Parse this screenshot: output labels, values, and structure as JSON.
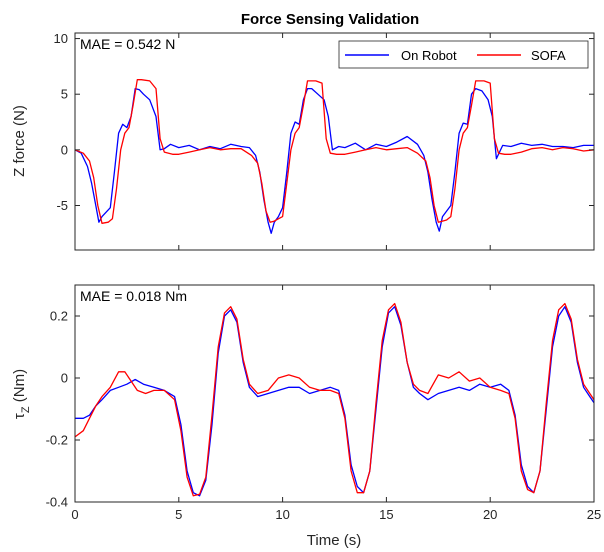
{
  "title": "Force Sensing Validation",
  "chart_data": [
    {
      "type": "line",
      "ylabel": "Z force (N)",
      "xlabel": "",
      "xlim": [
        0,
        25
      ],
      "ylim": [
        -9,
        10.5
      ],
      "xticks": [
        0,
        5,
        10,
        15,
        20,
        25
      ],
      "yticks": [
        -5,
        0,
        5,
        10
      ],
      "xticklabels_shown": false,
      "grid": false,
      "legend": "top-right",
      "annotation": "MAE = 0.542 N",
      "series": [
        {
          "name": "On Robot",
          "color": "#0000ff",
          "x": [
            0,
            0.3,
            0.6,
            0.8,
            1.0,
            1.15,
            1.3,
            1.5,
            1.7,
            1.9,
            2.1,
            2.3,
            2.5,
            2.7,
            2.9,
            3.1,
            3.3,
            3.6,
            3.9,
            4.1,
            4.3,
            4.6,
            5.0,
            5.5,
            6.0,
            6.5,
            7.0,
            7.5,
            8.0,
            8.4,
            8.7,
            8.9,
            9.1,
            9.3,
            9.45,
            9.6,
            9.8,
            10.0,
            10.2,
            10.4,
            10.6,
            10.8,
            11.0,
            11.2,
            11.4,
            11.7,
            12.0,
            12.2,
            12.4,
            12.7,
            13.0,
            13.5,
            14.0,
            14.5,
            15.0,
            15.5,
            16.0,
            16.5,
            16.8,
            17.0,
            17.2,
            17.4,
            17.55,
            17.7,
            17.9,
            18.1,
            18.3,
            18.5,
            18.7,
            18.9,
            19.1,
            19.3,
            19.6,
            19.9,
            20.1,
            20.3,
            20.6,
            21.0,
            21.5,
            22.0,
            22.5,
            23.0,
            23.5,
            24.0,
            24.5,
            25.0
          ],
          "y": [
            0,
            -0.3,
            -1.5,
            -3.0,
            -5.0,
            -6.5,
            -6.0,
            -5.6,
            -5.2,
            -2.0,
            1.5,
            2.3,
            2.0,
            3.0,
            5.5,
            5.4,
            5.0,
            4.5,
            3.0,
            0,
            0.1,
            0.5,
            0.2,
            0.4,
            0,
            0.3,
            0.1,
            0.5,
            0.3,
            0.2,
            -0.5,
            -2.0,
            -4.5,
            -6.5,
            -7.5,
            -6.5,
            -6.0,
            -5.2,
            -2.0,
            1.5,
            2.5,
            2.3,
            4.5,
            5.5,
            5.5,
            5.0,
            4.5,
            3.0,
            0,
            0.3,
            0.2,
            0.6,
            0,
            0.5,
            0.3,
            0.7,
            1.2,
            0.5,
            -0.5,
            -2.0,
            -4.5,
            -6.5,
            -7.3,
            -6.0,
            -5.5,
            -5.0,
            -2.0,
            1.5,
            2.4,
            2.3,
            5.0,
            5.5,
            5.3,
            4.5,
            3.0,
            -0.8,
            0.4,
            0.3,
            0.6,
            0.4,
            0.5,
            0.3,
            0.3,
            0.2,
            0.4,
            0.4
          ]
        },
        {
          "name": "SOFA",
          "color": "#ff0000",
          "x": [
            0,
            0.4,
            0.7,
            0.9,
            1.1,
            1.3,
            1.6,
            1.8,
            2.0,
            2.2,
            2.4,
            2.6,
            2.8,
            3.0,
            3.2,
            3.6,
            3.9,
            4.1,
            4.3,
            4.7,
            5.0,
            5.5,
            6.0,
            6.5,
            7.0,
            7.5,
            8.0,
            8.5,
            8.8,
            9.0,
            9.2,
            9.4,
            9.6,
            9.8,
            10.0,
            10.2,
            10.4,
            10.6,
            10.8,
            11.0,
            11.2,
            11.6,
            11.9,
            12.1,
            12.3,
            12.6,
            13.0,
            13.5,
            14.0,
            14.5,
            15.0,
            15.5,
            16.0,
            16.5,
            16.9,
            17.1,
            17.3,
            17.5,
            17.7,
            17.9,
            18.1,
            18.3,
            18.5,
            18.7,
            18.9,
            19.1,
            19.3,
            19.7,
            20.0,
            20.2,
            20.4,
            20.7,
            21.0,
            21.5,
            22.0,
            22.5,
            23.0,
            23.5,
            24.0,
            24.5,
            25.0
          ],
          "y": [
            0,
            -0.3,
            -1.0,
            -2.5,
            -5.0,
            -6.6,
            -6.5,
            -6.2,
            -3.5,
            0,
            1.5,
            2.0,
            4.0,
            6.3,
            6.3,
            6.2,
            5.5,
            1.0,
            -0.2,
            -0.4,
            -0.4,
            -0.2,
            0,
            0.2,
            0,
            0.1,
            0.1,
            -0.5,
            -1.2,
            -3.0,
            -5.5,
            -6.5,
            -6.4,
            -6.2,
            -6.0,
            -3.0,
            0,
            1.5,
            2.0,
            4.0,
            6.2,
            6.2,
            6.0,
            1.0,
            -0.3,
            -0.4,
            -0.4,
            -0.2,
            0,
            0.2,
            0,
            0.1,
            0.2,
            -0.3,
            -1.0,
            -2.5,
            -5.0,
            -6.5,
            -6.4,
            -6.3,
            -6.0,
            -3.5,
            0,
            1.5,
            2.0,
            4.0,
            6.2,
            6.2,
            6.0,
            1.0,
            -0.3,
            -0.4,
            -0.4,
            -0.2,
            0.1,
            0.2,
            0,
            0.2,
            0.1,
            -0.1,
            0
          ]
        }
      ]
    },
    {
      "type": "line",
      "ylabel": "τ",
      "ylabel_sub": "Z",
      "ylabel_unit": " (Nm)",
      "xlabel": "Time (s)",
      "xlim": [
        0,
        25
      ],
      "ylim": [
        -0.4,
        0.3
      ],
      "xticks": [
        0,
        5,
        10,
        15,
        20,
        25
      ],
      "yticks": [
        -0.4,
        -0.2,
        0,
        0.2
      ],
      "xticklabels_shown": true,
      "grid": false,
      "annotation": "MAE = 0.018 Nm",
      "series": [
        {
          "name": "On Robot",
          "color": "#0000ff",
          "x": [
            0,
            0.4,
            0.7,
            1.0,
            1.3,
            1.7,
            2.1,
            2.5,
            2.9,
            3.3,
            3.8,
            4.3,
            4.8,
            5.1,
            5.4,
            5.7,
            6.0,
            6.3,
            6.6,
            6.9,
            7.2,
            7.5,
            7.8,
            8.1,
            8.4,
            8.8,
            9.3,
            9.8,
            10.3,
            10.8,
            11.3,
            11.8,
            12.3,
            12.7,
            13.0,
            13.3,
            13.6,
            13.9,
            14.2,
            14.5,
            14.8,
            15.1,
            15.4,
            15.7,
            16.0,
            16.3,
            16.6,
            17.0,
            17.5,
            18.0,
            18.5,
            19.0,
            19.5,
            20.0,
            20.5,
            20.9,
            21.2,
            21.5,
            21.8,
            22.1,
            22.4,
            22.7,
            23.0,
            23.3,
            23.6,
            23.9,
            24.2,
            24.5,
            24.8,
            25.0
          ],
          "y": [
            -0.13,
            -0.13,
            -0.12,
            -0.09,
            -0.07,
            -0.04,
            -0.03,
            -0.02,
            -0.005,
            -0.02,
            -0.03,
            -0.04,
            -0.06,
            -0.15,
            -0.3,
            -0.37,
            -0.38,
            -0.33,
            -0.15,
            0.08,
            0.2,
            0.22,
            0.18,
            0.05,
            -0.03,
            -0.06,
            -0.05,
            -0.04,
            -0.03,
            -0.03,
            -0.05,
            -0.04,
            -0.03,
            -0.04,
            -0.12,
            -0.28,
            -0.35,
            -0.37,
            -0.3,
            -0.1,
            0.1,
            0.21,
            0.23,
            0.17,
            0.05,
            -0.03,
            -0.05,
            -0.07,
            -0.05,
            -0.04,
            -0.03,
            -0.04,
            -0.02,
            -0.03,
            -0.02,
            -0.04,
            -0.12,
            -0.28,
            -0.35,
            -0.37,
            -0.3,
            -0.1,
            0.1,
            0.2,
            0.23,
            0.18,
            0.05,
            -0.03,
            -0.06,
            -0.08
          ]
        },
        {
          "name": "SOFA",
          "color": "#ff0000",
          "x": [
            0,
            0.4,
            0.7,
            1.0,
            1.3,
            1.7,
            2.1,
            2.4,
            2.7,
            3.0,
            3.4,
            3.8,
            4.3,
            4.8,
            5.1,
            5.4,
            5.7,
            6.0,
            6.3,
            6.6,
            6.9,
            7.2,
            7.5,
            7.8,
            8.1,
            8.4,
            8.8,
            9.3,
            9.8,
            10.3,
            10.8,
            11.3,
            11.8,
            12.3,
            12.7,
            13.0,
            13.3,
            13.6,
            13.9,
            14.2,
            14.5,
            14.8,
            15.1,
            15.4,
            15.7,
            16.0,
            16.3,
            16.6,
            17.0,
            17.5,
            18.0,
            18.5,
            19.0,
            19.5,
            20.0,
            20.5,
            20.9,
            21.2,
            21.5,
            21.8,
            22.1,
            22.4,
            22.7,
            23.0,
            23.3,
            23.6,
            23.9,
            24.2,
            24.5,
            24.8,
            25.0
          ],
          "y": [
            -0.19,
            -0.17,
            -0.13,
            -0.09,
            -0.06,
            -0.03,
            0.02,
            0.02,
            -0.01,
            -0.04,
            -0.05,
            -0.04,
            -0.04,
            -0.07,
            -0.17,
            -0.32,
            -0.38,
            -0.375,
            -0.32,
            -0.12,
            0.1,
            0.21,
            0.23,
            0.19,
            0.06,
            -0.02,
            -0.05,
            -0.04,
            0.0,
            0.01,
            0.0,
            -0.03,
            -0.04,
            -0.04,
            -0.05,
            -0.13,
            -0.3,
            -0.37,
            -0.37,
            -0.3,
            -0.08,
            0.12,
            0.22,
            0.24,
            0.18,
            0.05,
            -0.02,
            -0.04,
            -0.05,
            0.01,
            0.0,
            0.02,
            -0.01,
            0.0,
            -0.03,
            -0.04,
            -0.05,
            -0.13,
            -0.3,
            -0.36,
            -0.37,
            -0.3,
            -0.08,
            0.12,
            0.22,
            0.24,
            0.19,
            0.06,
            -0.02,
            -0.05,
            -0.07
          ]
        }
      ]
    }
  ]
}
